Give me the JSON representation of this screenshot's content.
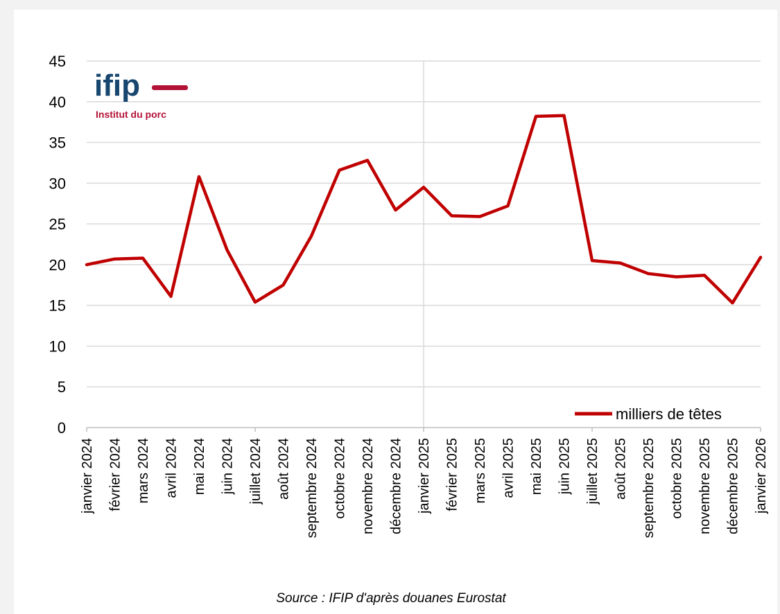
{
  "logo": {
    "word": "ifip",
    "subtitle": "Institut du porc",
    "accent": "#b31237",
    "word_color": "#17466f"
  },
  "source": "Source : IFIP d'après douanes Eurostat",
  "chart_data": {
    "type": "line",
    "title": "",
    "xlabel": "",
    "ylabel": "",
    "ylim": [
      0,
      45
    ],
    "yticks": [
      0,
      5,
      10,
      15,
      20,
      25,
      30,
      35,
      40,
      45
    ],
    "grid": true,
    "legend_position": "bottom-right",
    "categories": [
      "janvier 2024",
      "février 2024",
      "mars 2024",
      "avril 2024",
      "mai 2024",
      "juin 2024",
      "juillet 2024",
      "août 2024",
      "septembre 2024",
      "octobre 2024",
      "novembre 2024",
      "décembre 2024",
      "janvier 2025",
      "février 2025",
      "mars 2025",
      "avril 2025",
      "mai 2025",
      "juin 2025",
      "juillet 2025",
      "août 2025",
      "septembre 2025",
      "octobre 2025",
      "novembre 2025",
      "décembre 2025",
      "janvier 2026"
    ],
    "series": [
      {
        "name": "milliers de têtes",
        "color": "#c00000",
        "values": [
          20.0,
          20.7,
          20.8,
          16.1,
          30.8,
          21.8,
          15.4,
          17.5,
          23.5,
          31.6,
          32.8,
          26.7,
          29.5,
          26.0,
          25.9,
          27.2,
          38.2,
          38.3,
          20.5,
          20.2,
          18.9,
          18.5,
          18.7,
          15.3,
          20.9
        ]
      }
    ]
  }
}
